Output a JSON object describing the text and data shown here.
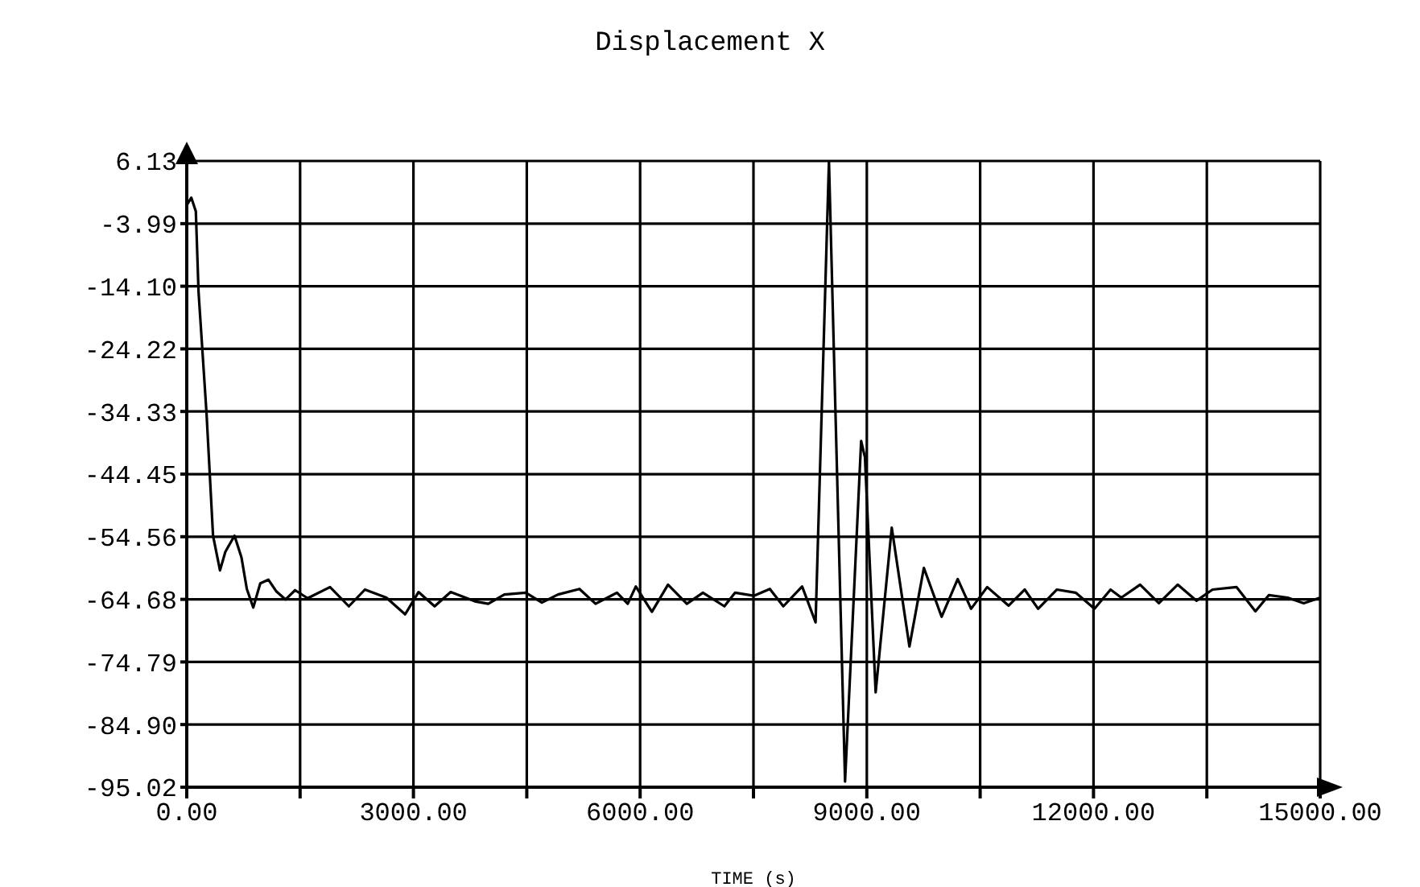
{
  "chart_data": {
    "type": "line",
    "title": "Displacement X",
    "xlabel": "TIME (s)",
    "x": [
      0,
      60,
      120,
      156,
      262,
      348,
      440,
      511,
      632,
      724,
      795,
      880,
      973,
      1080,
      1186,
      1306,
      1434,
      1600,
      1896,
      2145,
      2358,
      2641,
      2890,
      3067,
      3280,
      3493,
      3813,
      3990,
      4203,
      4487,
      4700,
      4913,
      5197,
      5410,
      5694,
      5836,
      5943,
      6156,
      6369,
      6618,
      6831,
      7115,
      7257,
      7504,
      7717,
      7895,
      8144,
      8322,
      8499,
      8712,
      8925,
      8975,
      9117,
      9330,
      9564,
      9755,
      9990,
      10203,
      10380,
      10593,
      10877,
      11090,
      11267,
      11516,
      11764,
      12013,
      12226,
      12368,
      12617,
      12865,
      13114,
      13362,
      13575,
      13894,
      14143,
      14320,
      14569,
      14782,
      15000
    ],
    "series": [
      {
        "color": "#000000",
        "values": [
          -1,
          0.2,
          -2,
          -15,
          -34.7,
          -54.4,
          -60,
          -57,
          -54.4,
          -57.9,
          -63,
          -66,
          -62.1,
          -61.5,
          -63.4,
          -64.7,
          -63.2,
          -64.5,
          -62.7,
          -65.8,
          -63.1,
          -64.4,
          -67.1,
          -63.5,
          -65.8,
          -63.5,
          -65,
          -65.4,
          -63.9,
          -63.6,
          -65.2,
          -63.9,
          -63,
          -65.4,
          -63.6,
          -65.4,
          -62.6,
          -66.7,
          -62.3,
          -65.4,
          -63.6,
          -65.8,
          -63.6,
          -64.1,
          -63,
          -65.8,
          -62.6,
          -68.4,
          6.1,
          -94.1,
          -39.1,
          -41.7,
          -79.7,
          -53.1,
          -72.3,
          -59.6,
          -67.5,
          -61.4,
          -66.2,
          -62.7,
          -65.7,
          -63.1,
          -66.2,
          -63.1,
          -63.6,
          -66.2,
          -63.1,
          -64.4,
          -62.3,
          -65.3,
          -62.3,
          -64.9,
          -63.1,
          -62.7,
          -66.6,
          -64,
          -64.4,
          -65.3,
          -64.4
        ]
      }
    ],
    "xlim": [
      0,
      15000
    ],
    "xticks": [
      {
        "value": 0,
        "label": "0.00"
      },
      {
        "value": 1500,
        "label": null
      },
      {
        "value": 3000,
        "label": "3000.00"
      },
      {
        "value": 4500,
        "label": null
      },
      {
        "value": 6000,
        "label": "6000.00"
      },
      {
        "value": 7500,
        "label": null
      },
      {
        "value": 9000,
        "label": "9000.00"
      },
      {
        "value": 10500,
        "label": null
      },
      {
        "value": 12000,
        "label": "12000.00"
      },
      {
        "value": 13500,
        "label": null
      },
      {
        "value": 15000,
        "label": "15000.00"
      }
    ],
    "ylim": [
      -95.02,
      6.13
    ],
    "yticks": [
      -95.02,
      {
        "value": -84.9,
        "label": "-84.90"
      },
      -74.79,
      -64.68,
      -54.56,
      -44.45,
      -34.33,
      -24.22,
      {
        "value": -14.1,
        "label": "-14.10"
      },
      -3.99,
      6.13
    ],
    "grid": true,
    "marker": "none",
    "line_style": "solid",
    "legend": false
  }
}
